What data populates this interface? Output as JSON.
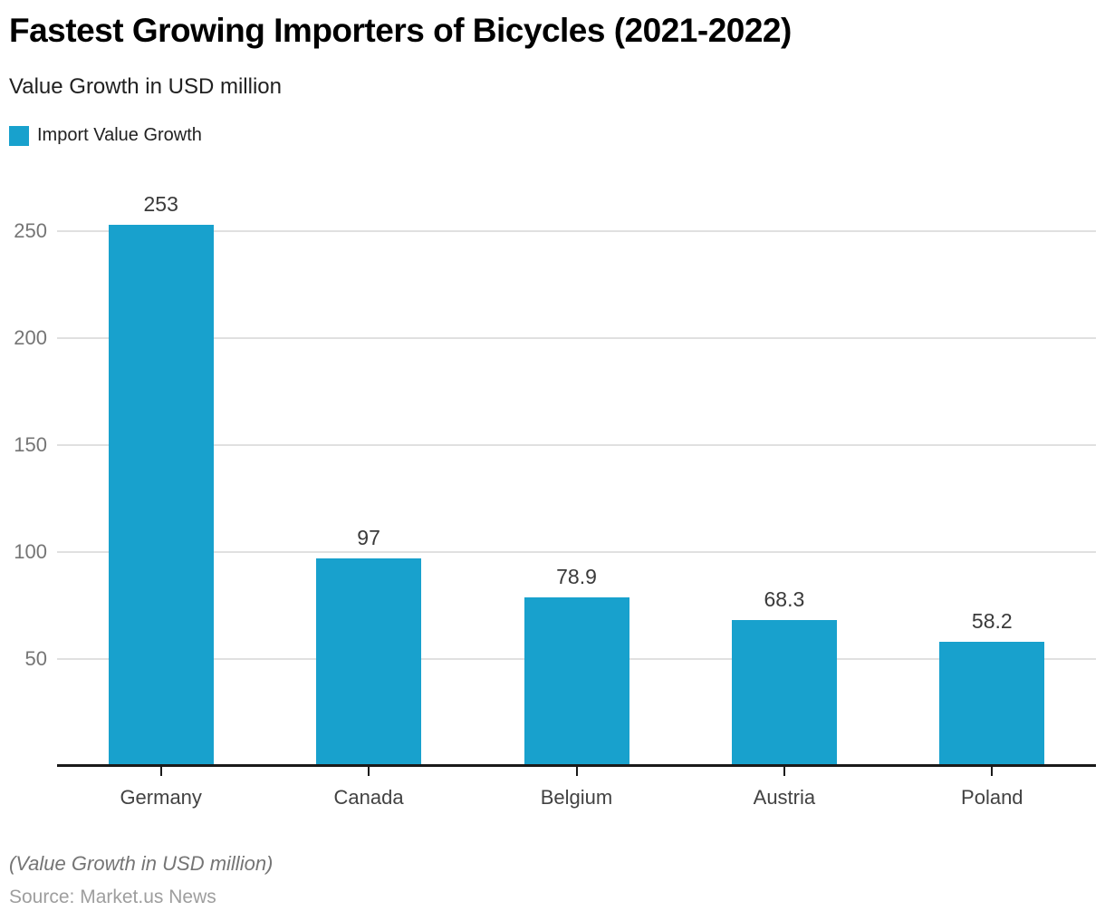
{
  "header": {
    "title": "Fastest Growing Importers of Bicycles (2021-2022)",
    "subtitle": "Value Growth in USD million"
  },
  "legend": {
    "label": "Import Value Growth",
    "color": "#18a1cd"
  },
  "chart_data": {
    "type": "bar",
    "title": "Fastest Growing Importers of Bicycles (2021-2022)",
    "subtitle": "Value Growth in USD million",
    "series_name": "Import Value Growth",
    "categories": [
      "Germany",
      "Canada",
      "Belgium",
      "Austria",
      "Poland"
    ],
    "values": [
      253,
      97,
      78.9,
      68.3,
      58.2
    ],
    "value_labels": [
      "253",
      "97",
      "78.9",
      "68.3",
      "58.2"
    ],
    "xlabel": "",
    "ylabel": "",
    "yticks": [
      50,
      100,
      150,
      200,
      250
    ],
    "ylim": [
      0,
      265
    ],
    "grid": "horizontal",
    "legend_position": "top-left",
    "bar_color": "#18a1cd",
    "grid_color": "#e0e0e0",
    "axis_color": "#1a1a1a"
  },
  "footer": {
    "note": "(Value Growth in USD million)",
    "source": "Source: Market.us News"
  }
}
